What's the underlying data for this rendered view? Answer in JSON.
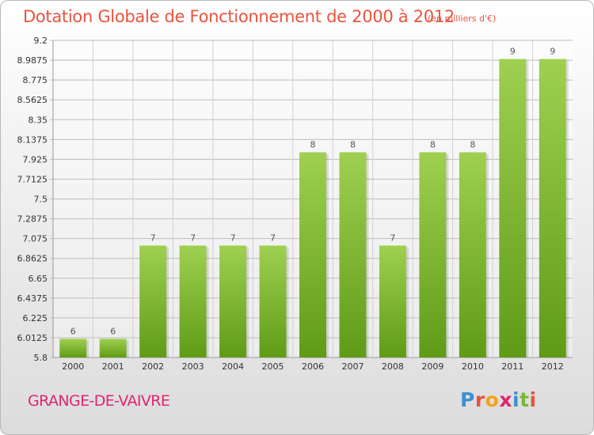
{
  "header": {
    "title": "Dotation Globale de Fonctionnement de 2000 à 2012",
    "unit": "(en milliers d'€)"
  },
  "footer": {
    "commune": "GRANGE-DE-VAIVRE",
    "brand": "Proxiti"
  },
  "colors": {
    "title": "#e8543f",
    "commune": "#e02570",
    "bar_top": "#9fd051",
    "bar_bottom": "#5f9b16",
    "brand_letters": [
      "#3f8fd0",
      "#e8543f",
      "#f4a21c",
      "#e02570",
      "#3f8fd0",
      "#79b83a",
      "#e8543f"
    ]
  },
  "chart_data": {
    "type": "bar",
    "title": "Dotation Globale de Fonctionnement de 2000 à 2012",
    "xlabel": "",
    "ylabel": "",
    "categories": [
      "2000",
      "2001",
      "2002",
      "2003",
      "2004",
      "2005",
      "2006",
      "2007",
      "2008",
      "2009",
      "2010",
      "2011",
      "2012"
    ],
    "values": [
      6,
      6,
      7,
      7,
      7,
      7,
      8,
      8,
      7,
      8,
      8,
      9,
      9
    ],
    "data_labels": [
      "6",
      "6",
      "7",
      "7",
      "7",
      "7",
      "8",
      "8",
      "7",
      "8",
      "8",
      "9",
      "9"
    ],
    "ylim": [
      5.8,
      9.2
    ],
    "yticks": [
      "5.8",
      "6.0125",
      "6.225",
      "6.4375",
      "6.65",
      "6.8625",
      "7.075",
      "7.2875",
      "7.5",
      "7.7125",
      "7.925",
      "8.1375",
      "8.35",
      "8.5625",
      "8.775",
      "8.9875",
      "9.2"
    ],
    "grid": true,
    "legend": "none"
  }
}
